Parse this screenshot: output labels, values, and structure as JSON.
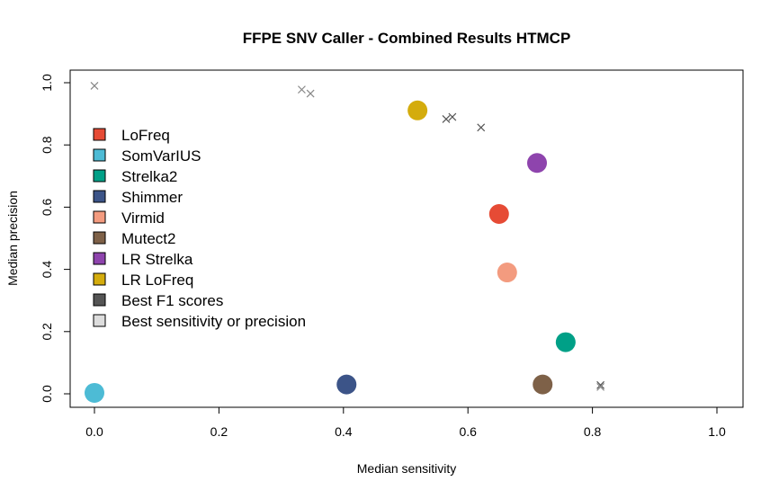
{
  "chart_data": {
    "type": "scatter",
    "title": "FFPE SNV Caller - Combined Results HTMCP",
    "xlabel": "Median sensitivity",
    "ylabel": "Median precision",
    "xlim": [
      0.0,
      1.0
    ],
    "ylim": [
      0.0,
      1.0
    ],
    "x_ticks": [
      "0.0",
      "0.2",
      "0.4",
      "0.6",
      "0.8",
      "1.0"
    ],
    "y_ticks": [
      "0.0",
      "0.2",
      "0.4",
      "0.6",
      "0.8",
      "1.0"
    ],
    "grid": false,
    "legend_position": "left",
    "legend": [
      {
        "label": "LoFreq",
        "color": "#E64B35"
      },
      {
        "label": "SomVarIUS",
        "color": "#4DBBD5"
      },
      {
        "label": "Strelka2",
        "color": "#00A087"
      },
      {
        "label": "Shimmer",
        "color": "#3C5488"
      },
      {
        "label": "Virmid",
        "color": "#F39B7F"
      },
      {
        "label": "Mutect2",
        "color": "#7E6148"
      },
      {
        "label": "LR Strelka",
        "color": "#8E44AD"
      },
      {
        "label": "LR LoFreq",
        "color": "#D4AC0D"
      },
      {
        "label": "Best F1 scores",
        "color": "#555555"
      },
      {
        "label": "Best sensitivity or precision",
        "color": "#DDDDDD"
      }
    ],
    "series": [
      {
        "name": "LoFreq",
        "color": "#E64B35",
        "x": 0.65,
        "y": 0.578
      },
      {
        "name": "SomVarIUS",
        "color": "#4DBBD5",
        "x": 0.0,
        "y": 0.003
      },
      {
        "name": "Strelka2",
        "color": "#00A087",
        "x": 0.757,
        "y": 0.166
      },
      {
        "name": "Shimmer",
        "color": "#3C5488",
        "x": 0.405,
        "y": 0.03
      },
      {
        "name": "Virmid",
        "color": "#F39B7F",
        "x": 0.663,
        "y": 0.39
      },
      {
        "name": "Mutect2",
        "color": "#7E6148",
        "x": 0.72,
        "y": 0.03
      },
      {
        "name": "LR Strelka",
        "color": "#8E44AD",
        "x": 0.711,
        "y": 0.742
      },
      {
        "name": "LR LoFreq",
        "color": "#D4AC0D",
        "x": 0.519,
        "y": 0.911
      }
    ],
    "cross_points": [
      {
        "x": 0.0,
        "y": 0.99,
        "color": "#888888"
      },
      {
        "x": 0.333,
        "y": 0.978,
        "color": "#888888"
      },
      {
        "x": 0.347,
        "y": 0.965,
        "color": "#888888"
      },
      {
        "x": 0.565,
        "y": 0.883,
        "color": "#555555"
      },
      {
        "x": 0.575,
        "y": 0.89,
        "color": "#555555"
      },
      {
        "x": 0.621,
        "y": 0.856,
        "color": "#555555"
      },
      {
        "x": 0.813,
        "y": 0.028,
        "color": "#555555"
      },
      {
        "x": 0.813,
        "y": 0.022,
        "color": "#888888"
      }
    ]
  }
}
